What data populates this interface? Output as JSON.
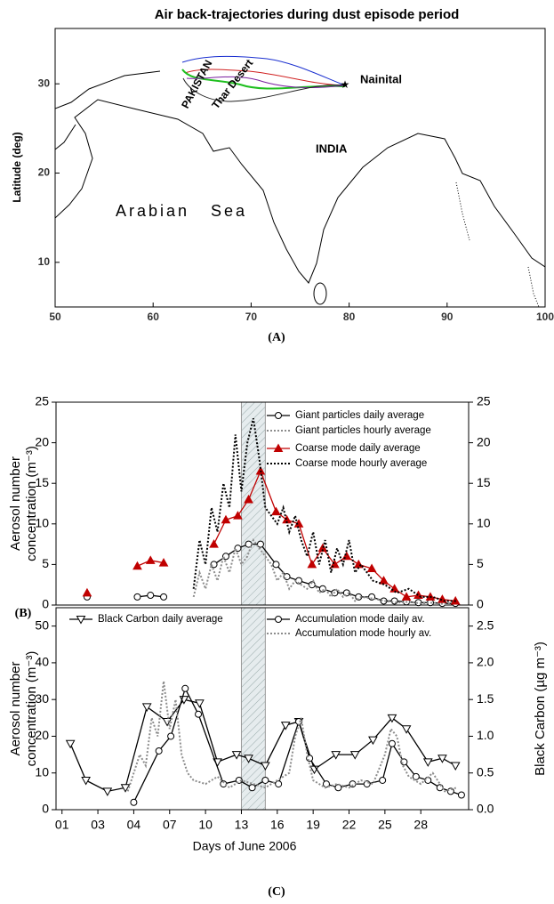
{
  "map": {
    "title": "Air back-trajectories during dust episode period",
    "xlim": [
      50,
      100
    ],
    "ylim": [
      5,
      36.2
    ],
    "xticks": [
      50,
      60,
      70,
      80,
      90,
      100
    ],
    "yticks": [
      10,
      20,
      30
    ],
    "ylabel": "Latitude (deg)",
    "labels": {
      "nainital": "Nainital",
      "pakistan": "PAKISTAN",
      "thar": "Thar Desert",
      "india": "INDIA",
      "sea": "Arabian   Sea"
    },
    "caption": "(A)"
  },
  "chart_data": [
    {
      "type": "line",
      "caption": "(B)",
      "ylabel": [
        "Aerosol number",
        "concentration (m⁻³)"
      ],
      "xlim": [
        0.5,
        35
      ],
      "ylim": [
        0,
        25
      ],
      "yticks": [
        0,
        5,
        10,
        15,
        20,
        25
      ],
      "y2lim": [
        0,
        25
      ],
      "y2ticks": [
        0,
        5,
        10,
        15,
        20,
        25
      ],
      "highlight": [
        16,
        18
      ],
      "series": [
        {
          "name": "Giant particles daily average",
          "color": "#000000",
          "marker": "circle-open",
          "dashed": false,
          "x": [
            3.1,
            5,
            7.3,
            8.4,
            9.5,
            11.5,
            13.7,
            14.7,
            15.7,
            16.6,
            17.6,
            18.9,
            19.8,
            20.8,
            21.9,
            22.8,
            23.8,
            24.8,
            25.8,
            26.9,
            27.9,
            28.8,
            29.8,
            30.8,
            31.8,
            32.8,
            33.9
          ],
          "values": [
            1,
            null,
            1,
            1.2,
            1,
            null,
            5,
            6,
            7,
            7.5,
            7.5,
            5,
            3.5,
            3,
            2.5,
            2,
            1.5,
            1.5,
            1,
            1,
            0.5,
            0.5,
            0.4,
            0.3,
            0.3,
            0.2,
            0.2
          ]
        },
        {
          "name": "Giant particles hourly average",
          "color": "#8c8c8c",
          "marker": "none",
          "dashed": true,
          "x": [
            12,
            12.5,
            13,
            13.5,
            14,
            14.5,
            15,
            15.5,
            16,
            16.5,
            17,
            17.5,
            18,
            18.5,
            19,
            19.5,
            20,
            20.5,
            21,
            21.5,
            22,
            22.5,
            23,
            23.5,
            24,
            24.5,
            25,
            25.5,
            26,
            27,
            28,
            29,
            30,
            31,
            32,
            33,
            34
          ],
          "values": [
            1,
            4,
            2,
            5,
            3,
            6,
            4,
            7,
            5,
            6,
            8,
            7,
            6,
            5,
            3,
            4,
            2,
            3,
            2.5,
            2,
            3,
            1.5,
            2,
            1,
            2,
            1,
            1.5,
            0.5,
            1,
            0.8,
            0.5,
            0.3,
            0.4,
            0.2,
            0.3,
            0.1,
            0.2
          ]
        },
        {
          "name": "Coarse mode daily average",
          "color": "#c00000",
          "marker": "triangle-filled",
          "dashed": false,
          "x": [
            3.1,
            5,
            7.3,
            8.4,
            9.5,
            11.5,
            13.7,
            14.7,
            15.7,
            16.6,
            17.6,
            18.9,
            19.8,
            20.8,
            21.9,
            22.8,
            23.8,
            24.8,
            25.8,
            26.9,
            27.9,
            28.8,
            29.8,
            30.8,
            31.8,
            32.8,
            33.9
          ],
          "values": [
            1.5,
            null,
            4.8,
            5.5,
            5.2,
            null,
            7.5,
            10.5,
            11,
            13,
            16.5,
            11.5,
            10.5,
            10,
            5,
            7,
            5,
            6,
            5,
            4.5,
            3,
            2,
            1,
            1.2,
            1,
            0.7,
            0.5
          ]
        },
        {
          "name": "Coarse mode hourly average",
          "color": "#000000",
          "marker": "none",
          "dashed": true,
          "x": [
            12,
            12.5,
            13,
            13.5,
            14,
            14.5,
            15,
            15.5,
            16,
            16.5,
            17,
            17.5,
            18,
            18.5,
            19,
            19.5,
            20,
            20.5,
            21,
            21.5,
            22,
            22.5,
            23,
            23.5,
            24,
            24.5,
            25,
            25.5,
            26,
            27,
            28,
            29,
            30,
            31,
            32,
            33,
            34
          ],
          "values": [
            2,
            8,
            5,
            12,
            9,
            15,
            12,
            21,
            14,
            20,
            23,
            18,
            12,
            11,
            10,
            12,
            9,
            11,
            8,
            6,
            9,
            5,
            8,
            4,
            7,
            5,
            8,
            4,
            5,
            3,
            2.5,
            1.5,
            2,
            1,
            1,
            0.5,
            0.5
          ]
        }
      ]
    },
    {
      "type": "line",
      "caption": "(C)",
      "ylabel": [
        "Aerosol number",
        "concentration (m⁻³)"
      ],
      "y2label": "Black Carbon (µg m⁻³)",
      "xlabel": "Days of June 2006",
      "xlim": [
        0.5,
        35
      ],
      "xticks": [
        {
          "value": 1,
          "label": "01"
        },
        {
          "value": 4,
          "label": "03"
        },
        {
          "value": 7,
          "label": "04"
        },
        {
          "value": 10,
          "label": "07"
        },
        {
          "value": 13,
          "label": "10"
        },
        {
          "value": 16,
          "label": "13"
        },
        {
          "value": 19,
          "label": "16"
        },
        {
          "value": 22,
          "label": "19"
        },
        {
          "value": 25,
          "label": "22"
        },
        {
          "value": 28,
          "label": "25"
        },
        {
          "value": 31,
          "label": "28"
        }
      ],
      "ylim": [
        0,
        55
      ],
      "yticks": [
        0,
        10,
        20,
        30,
        40,
        50
      ],
      "y2lim": [
        0,
        2.75
      ],
      "y2ticks": [
        {
          "value": 0,
          "label": "0.0"
        },
        0.5,
        {
          "value": 1,
          "label": "1.0"
        },
        1.5,
        {
          "value": 2,
          "label": "2.0"
        },
        2.5
      ],
      "highlight": [
        16,
        18
      ],
      "series": [
        {
          "name": "Black Carbon daily average",
          "color": "#000000",
          "marker": "triangle-down-open",
          "dashed": false,
          "axis": "y2",
          "x": [
            1.7,
            3.0,
            4.8,
            6.3,
            8.1,
            9.8,
            11.2,
            12.5,
            14.0,
            15.6,
            16.6,
            18.0,
            19.7,
            20.8,
            22.1,
            23.9,
            25.5,
            27.0,
            28.6,
            29.8,
            31.6,
            32.8,
            33.9
          ],
          "values": [
            0.9,
            0.4,
            0.25,
            0.3,
            1.4,
            1.2,
            1.5,
            1.45,
            0.65,
            0.75,
            0.7,
            0.6,
            1.15,
            1.2,
            0.55,
            0.75,
            0.75,
            0.95,
            1.25,
            1.1,
            0.65,
            0.7,
            0.6
          ]
        },
        {
          "name": "Accumulation mode daily av.",
          "color": "#000000",
          "marker": "circle-open",
          "dashed": false,
          "x": [
            7.0,
            9.1,
            10.1,
            11.3,
            12.4,
            14.5,
            15.8,
            16.9,
            18.0,
            19.1,
            20.8,
            21.7,
            23.1,
            24.1,
            25.3,
            26.5,
            27.8,
            28.6,
            29.6,
            30.6,
            31.6,
            32.6,
            33.5,
            34.4
          ],
          "values": [
            2,
            16,
            20,
            33,
            26,
            7,
            8,
            6,
            8,
            7,
            24,
            14,
            7,
            6,
            7,
            7,
            8,
            18,
            13,
            9,
            8,
            6,
            5,
            4
          ]
        },
        {
          "name": "Accumulation mode hourly av.",
          "color": "#8c8c8c",
          "marker": "none",
          "dashed": true,
          "x": [
            6.5,
            7,
            7.5,
            8,
            8.5,
            9,
            9.5,
            10,
            10.5,
            11,
            11.5,
            12,
            13,
            14,
            15,
            16,
            17,
            18,
            19,
            20,
            20.5,
            21,
            21.5,
            22,
            23,
            24,
            25,
            26,
            27,
            28,
            28.5,
            29,
            29.5,
            30,
            31,
            32,
            33,
            34
          ],
          "values": [
            5,
            10,
            15,
            12,
            25,
            20,
            35,
            22,
            30,
            15,
            10,
            8,
            7,
            9,
            6,
            8,
            7,
            6,
            8,
            10,
            20,
            25,
            15,
            8,
            6,
            7,
            6,
            8,
            7,
            15,
            22,
            20,
            12,
            9,
            7,
            10,
            5,
            6
          ]
        }
      ]
    }
  ]
}
